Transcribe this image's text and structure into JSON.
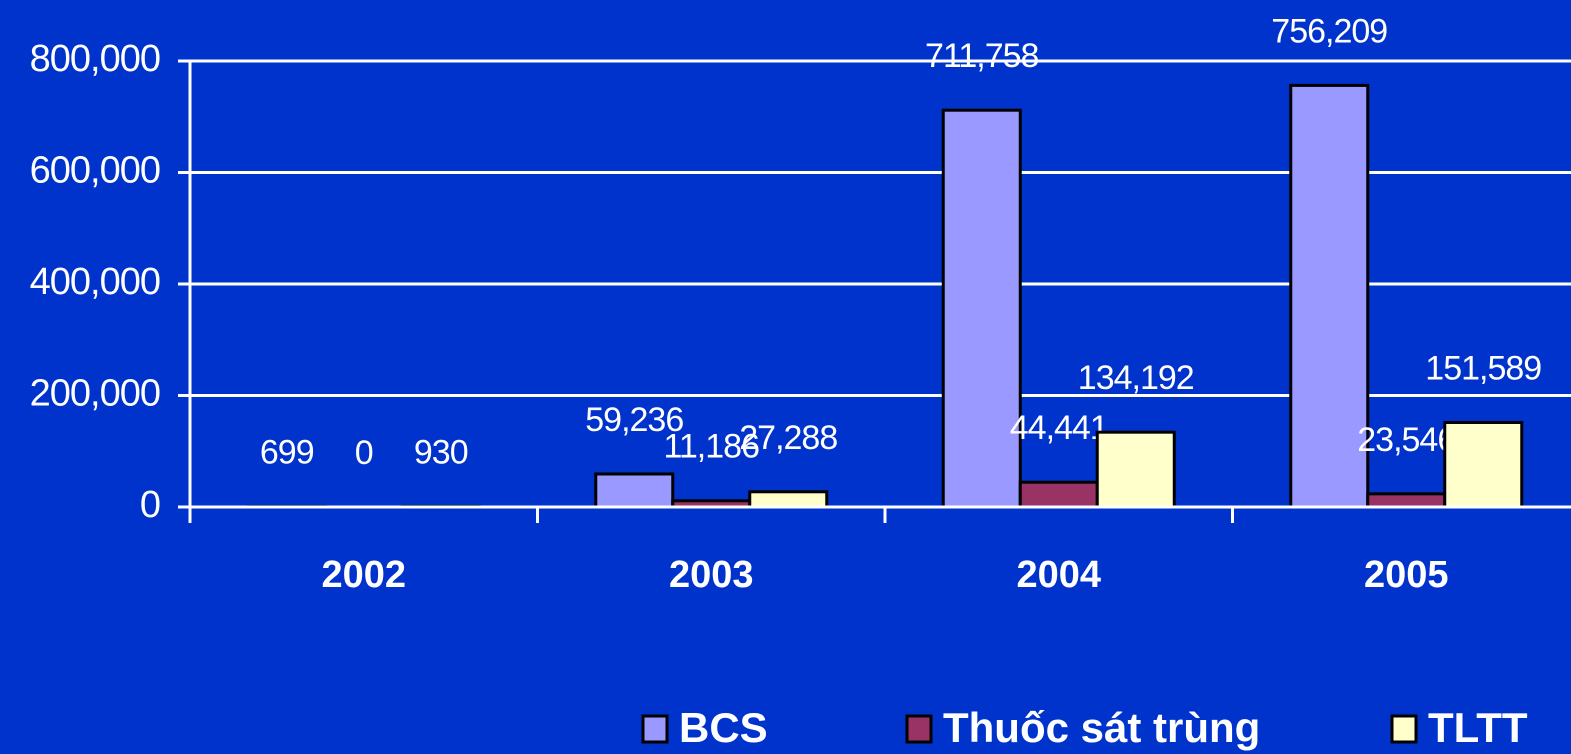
{
  "chart_data": {
    "type": "bar",
    "categories": [
      "2002",
      "2003",
      "2004",
      "2005"
    ],
    "series": [
      {
        "name": "BCS",
        "color": "#9999ff",
        "values": [
          699,
          59236,
          711758,
          756209
        ],
        "value_labels": [
          "699",
          "59,236",
          "711,758",
          "756,209"
        ]
      },
      {
        "name": "Thuốc sát trùng",
        "color": "#993366",
        "values": [
          0,
          11186,
          44441,
          23546
        ],
        "value_labels": [
          "0",
          "11,186",
          "44,441",
          "23,546"
        ]
      },
      {
        "name": "TLTT",
        "color": "#ffffcc",
        "values": [
          930,
          27288,
          134192,
          151589
        ],
        "value_labels": [
          "930",
          "27,288",
          "134,192",
          "151,589"
        ]
      }
    ],
    "ylim": [
      0,
      800000
    ],
    "yticks": [
      0,
      {
        "value": 200000,
        "label": "200,000"
      },
      {
        "value": 400000,
        "label": "400,000"
      },
      {
        "value": 600000,
        "label": "600,000"
      },
      {
        "value": 800000,
        "label": "800,000"
      }
    ],
    "grid": true,
    "legend": "bottom"
  }
}
